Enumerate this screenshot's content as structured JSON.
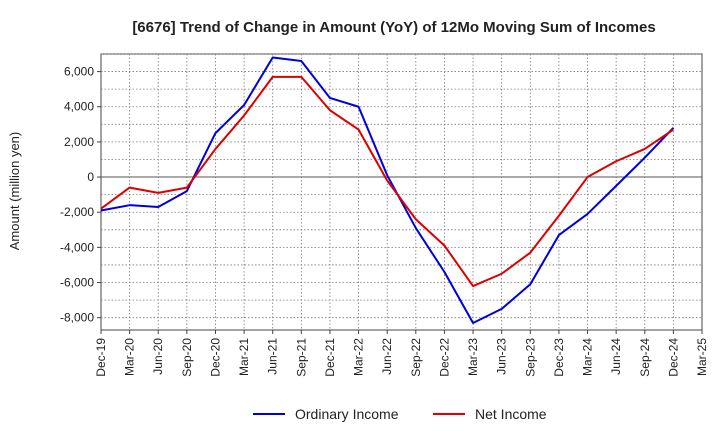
{
  "chart_data": {
    "type": "line",
    "title": "[6676]  Trend of Change in Amount (YoY) of 12Mo Moving Sum of Incomes",
    "xlabel": "",
    "ylabel": "Amount (million yen)",
    "ylim": [
      -8700,
      7000
    ],
    "yticks": [
      -8000,
      -6000,
      -4000,
      -2000,
      0,
      2000,
      4000,
      6000
    ],
    "ytick_labels": [
      "-8,000",
      "-6,000",
      "-4,000",
      "-2,000",
      "0",
      "2,000",
      "4,000",
      "6,000"
    ],
    "categories": [
      "Dec-19",
      "Mar-20",
      "Jun-20",
      "Sep-20",
      "Dec-20",
      "Mar-21",
      "Jun-21",
      "Sep-21",
      "Dec-21",
      "Mar-22",
      "Jun-22",
      "Sep-22",
      "Dec-22",
      "Mar-23",
      "Jun-23",
      "Sep-23",
      "Dec-23",
      "Mar-24",
      "Jun-24",
      "Sep-24",
      "Dec-24",
      "Mar-25"
    ],
    "grid": true,
    "legend_position": "bottom",
    "series": [
      {
        "name": "Ordinary Income",
        "color": "#0000dd",
        "values": [
          -1900,
          -1600,
          -1700,
          -800,
          2500,
          4100,
          6800,
          6600,
          4500,
          4000,
          100,
          -2900,
          -5400,
          -8300,
          -7500,
          -6100,
          -3300,
          -2100,
          -500,
          1100,
          2800,
          null
        ]
      },
      {
        "name": "Net Income",
        "color": "#dd0000",
        "values": [
          -1800,
          -600,
          -900,
          -600,
          1600,
          3500,
          5700,
          5700,
          3800,
          2700,
          -200,
          -2400,
          -3900,
          -6200,
          -5500,
          -4300,
          -2200,
          0,
          900,
          1600,
          2700,
          null
        ]
      }
    ]
  }
}
